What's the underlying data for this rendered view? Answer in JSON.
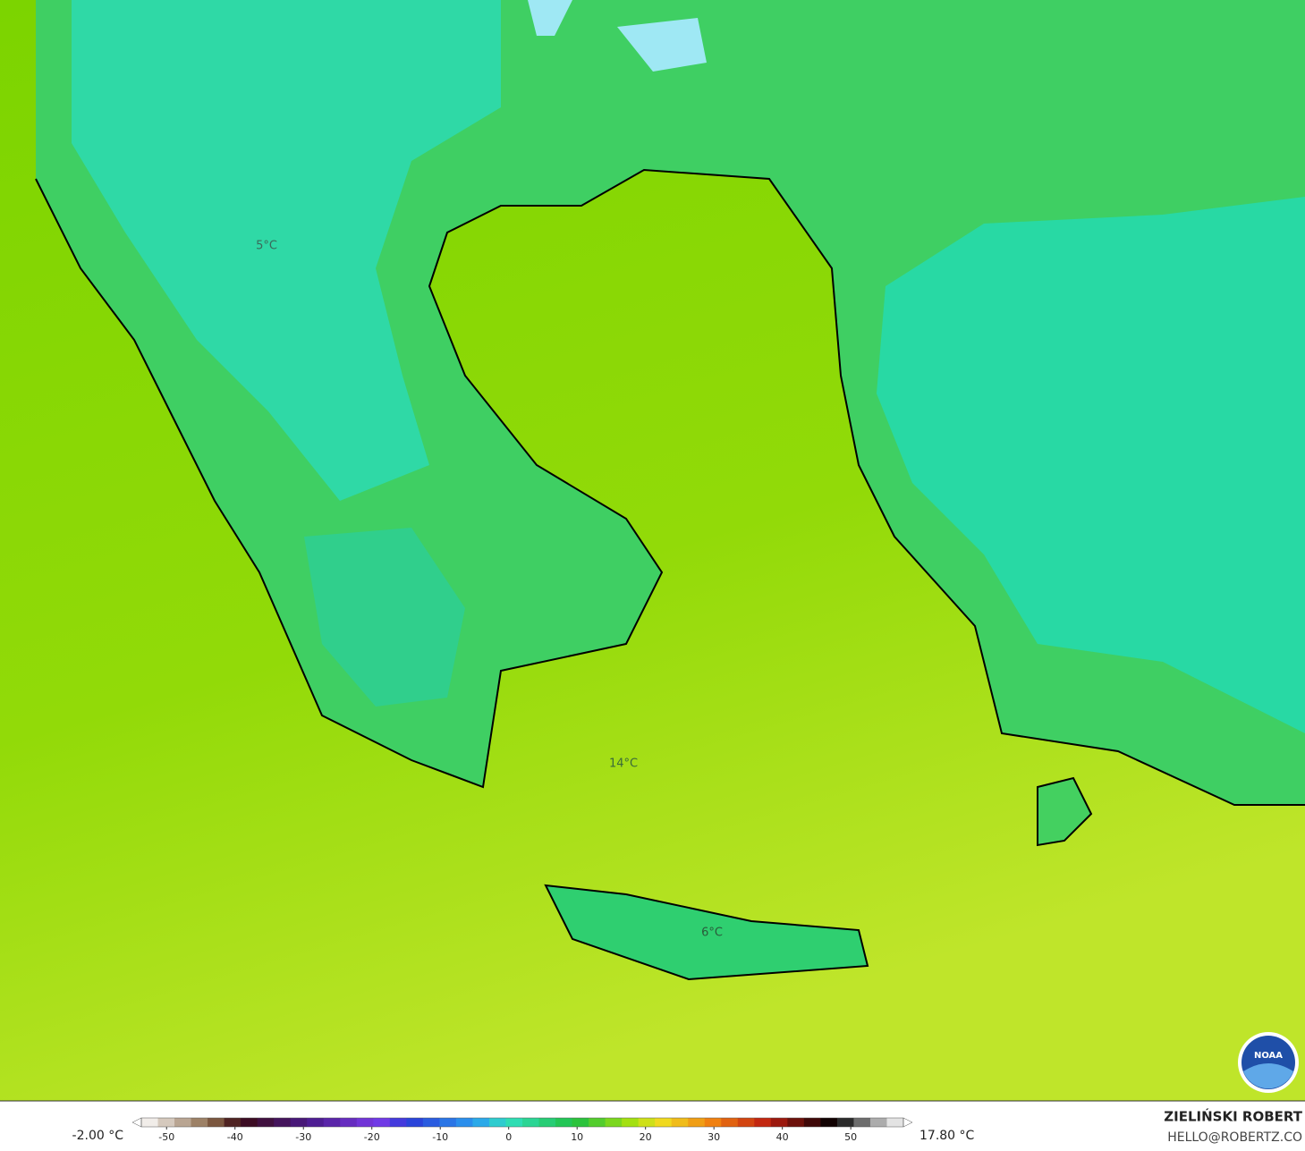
{
  "map_labels": [
    "5°C",
    "14°C",
    "6°C"
  ],
  "colorbar": {
    "min_label": "-2.00 °C",
    "max_label": "17.80 °C",
    "range": [
      -55,
      59
    ],
    "ticks": [
      -50,
      -40,
      -30,
      -20,
      -10,
      0,
      10,
      20,
      30,
      40,
      50
    ]
  },
  "credit": {
    "name": "ZIELIŃSKI ROBERT",
    "email": "HELLO@ROBERTZ.CO"
  },
  "logo": "NOAA"
}
